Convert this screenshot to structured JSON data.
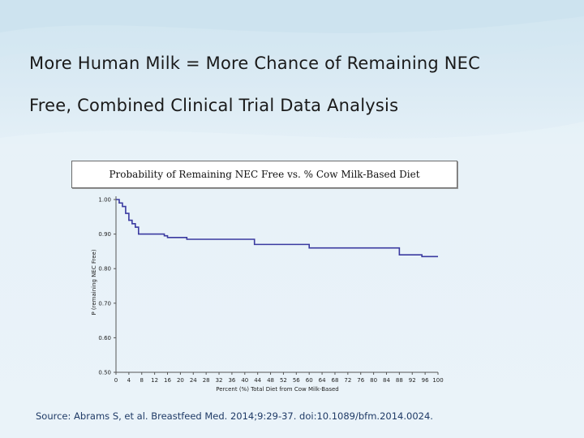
{
  "slide": {
    "title_line1": "More Human Milk = More Chance of Remaining NEC",
    "title_line2": "Free, Combined Clinical Trial Data Analysis",
    "source": "Source: Abrams S, et al. Breastfeed Med. 2014;9:29-37. doi:10.1089/bfm.2014.0024."
  },
  "chart_data": {
    "type": "line",
    "title": "Probability of Remaining NEC Free vs. % Cow Milk-Based Diet",
    "xlabel": "Percent (%) Total Diet from Cow Milk-Based",
    "ylabel": "P (remaining NEC Free)",
    "xlim": [
      0,
      100
    ],
    "ylim": [
      0.5,
      1.0
    ],
    "x_ticks": [
      0,
      4,
      8,
      12,
      16,
      20,
      24,
      28,
      32,
      36,
      40,
      44,
      48,
      52,
      56,
      60,
      64,
      68,
      72,
      76,
      80,
      84,
      88,
      92,
      96,
      100
    ],
    "y_ticks": [
      "0.50",
      "0.60",
      "0.70",
      "0.80",
      "0.90",
      "1.00"
    ],
    "series": [
      {
        "color": "#3a3aa0",
        "step": true,
        "x": [
          0,
          1,
          2,
          3,
          4,
          5,
          6,
          7,
          14,
          15,
          16,
          17,
          21,
          22,
          23,
          24,
          25,
          26,
          42,
          43,
          44,
          59,
          60,
          61,
          87,
          88,
          89,
          94,
          95,
          100
        ],
        "y": [
          1.0,
          0.99,
          0.98,
          0.96,
          0.94,
          0.93,
          0.92,
          0.9,
          0.9,
          0.895,
          0.89,
          0.89,
          0.89,
          0.885,
          0.885,
          0.885,
          0.885,
          0.885,
          0.885,
          0.87,
          0.87,
          0.87,
          0.86,
          0.86,
          0.86,
          0.84,
          0.84,
          0.84,
          0.835,
          0.835
        ]
      }
    ],
    "grid": false
  }
}
